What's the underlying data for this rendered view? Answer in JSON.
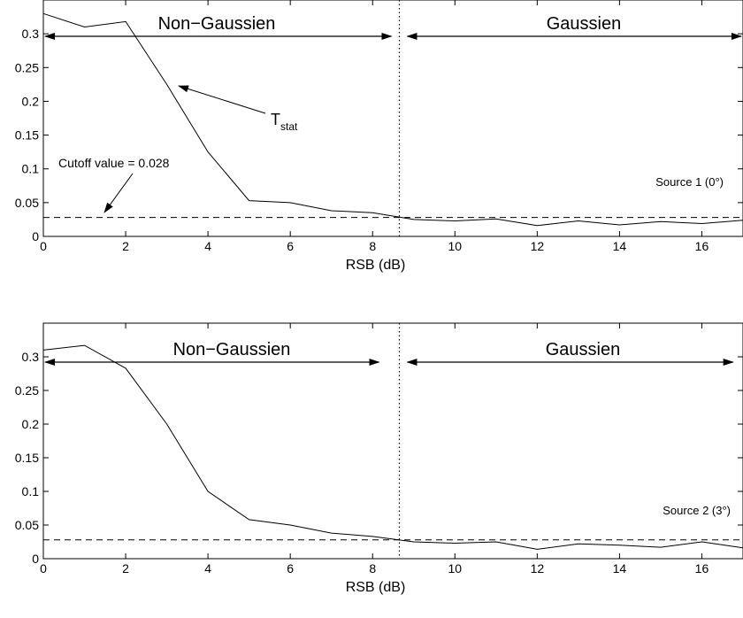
{
  "chart_data": [
    {
      "type": "line",
      "xlabel": "RSB (dB)",
      "ylabel": "",
      "xlim": [
        0,
        17
      ],
      "ylim": [
        0,
        0.35
      ],
      "xticks": [
        0,
        2,
        4,
        6,
        8,
        10,
        12,
        14,
        16
      ],
      "yticks": [
        0,
        0.05,
        0.1,
        0.15,
        0.2,
        0.25,
        0.3
      ],
      "grid": false,
      "series": [
        {
          "name": "T",
          "name_subscript": "stat",
          "x": [
            0,
            1,
            2,
            3,
            4,
            5,
            6,
            7,
            8,
            9,
            10,
            11,
            12,
            13,
            14,
            15,
            16,
            17
          ],
          "values": [
            0.33,
            0.31,
            0.318,
            0.225,
            0.125,
            0.053,
            0.05,
            0.038,
            0.035,
            0.025,
            0.023,
            0.026,
            0.016,
            0.023,
            0.017,
            0.022,
            0.019,
            0.024
          ]
        }
      ],
      "cutoff": 0.028,
      "boundary_x": 8.65,
      "regions": [
        {
          "label": "Non−Gaussien",
          "x_start": 0,
          "x_end": 8.5
        },
        {
          "label": "Gaussien",
          "x_start": 8.8,
          "x_end": 17
        }
      ],
      "annotations": {
        "cutoff_label": "Cutoff value = 0.028",
        "source_label": "Source 1 (0°)"
      }
    },
    {
      "type": "line",
      "xlabel": "RSB (dB)",
      "ylabel": "",
      "xlim": [
        0,
        17
      ],
      "ylim": [
        0,
        0.35
      ],
      "xticks": [
        0,
        2,
        4,
        6,
        8,
        10,
        12,
        14,
        16
      ],
      "yticks": [
        0,
        0.05,
        0.1,
        0.15,
        0.2,
        0.25,
        0.3
      ],
      "grid": false,
      "series": [
        {
          "x": [
            0,
            1,
            2,
            3,
            4,
            5,
            6,
            7,
            8,
            9,
            10,
            11,
            12,
            13,
            14,
            15,
            16,
            17
          ],
          "values": [
            0.31,
            0.317,
            0.283,
            0.2,
            0.1,
            0.058,
            0.05,
            0.038,
            0.033,
            0.025,
            0.023,
            0.025,
            0.014,
            0.022,
            0.02,
            0.017,
            0.025,
            0.016
          ]
        }
      ],
      "cutoff": 0.028,
      "boundary_x": 8.65,
      "regions": [
        {
          "label": "Non−Gaussien",
          "x_start": 0,
          "x_end": 8.2
        },
        {
          "label": "Gaussien",
          "x_start": 8.8,
          "x_end": 16.8
        }
      ],
      "annotations": {
        "source_label": "Source 2 (3°)"
      }
    }
  ]
}
